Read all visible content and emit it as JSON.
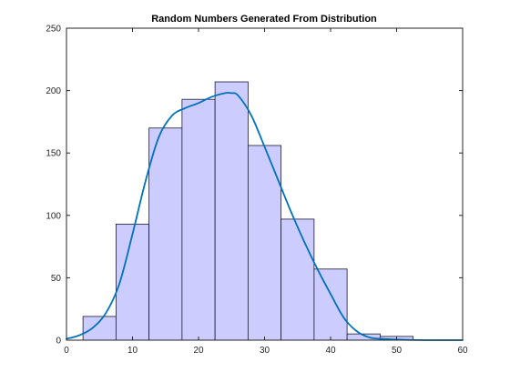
{
  "chart_data": {
    "type": "bar",
    "title": "Random Numbers Generated From Distribution",
    "xlabel": "",
    "ylabel": "",
    "xlim": [
      0,
      60
    ],
    "ylim": [
      0,
      250
    ],
    "xticks": [
      0,
      10,
      20,
      30,
      40,
      50,
      60
    ],
    "yticks": [
      0,
      50,
      100,
      150,
      200,
      250
    ],
    "grid": false,
    "bar_color": "#ccccff",
    "bar_edge_color": "#1a1a33",
    "curve_color": "#0072bd",
    "histogram": {
      "bin_edges": [
        2.5,
        7.5,
        12.5,
        17.5,
        22.5,
        27.5,
        32.5,
        37.5,
        42.5,
        47.5,
        52.5,
        57.5
      ],
      "counts": [
        19,
        93,
        170,
        193,
        207,
        156,
        97,
        57,
        5,
        3,
        0
      ]
    },
    "series": [
      {
        "type": "line",
        "x": [
          0,
          2,
          4,
          6,
          8,
          10,
          12,
          14,
          16,
          18,
          20,
          22,
          24,
          25,
          26,
          28,
          30,
          32,
          34,
          36,
          38,
          40,
          42,
          44,
          46,
          48,
          50,
          52,
          55,
          60
        ],
        "y": [
          1,
          4,
          10,
          22,
          45,
          85,
          128,
          163,
          180,
          186,
          190,
          195,
          198,
          198,
          196,
          180,
          155,
          129,
          103,
          79,
          57,
          37,
          18,
          7,
          2,
          1,
          0.5,
          0.2,
          0,
          0
        ]
      }
    ]
  }
}
